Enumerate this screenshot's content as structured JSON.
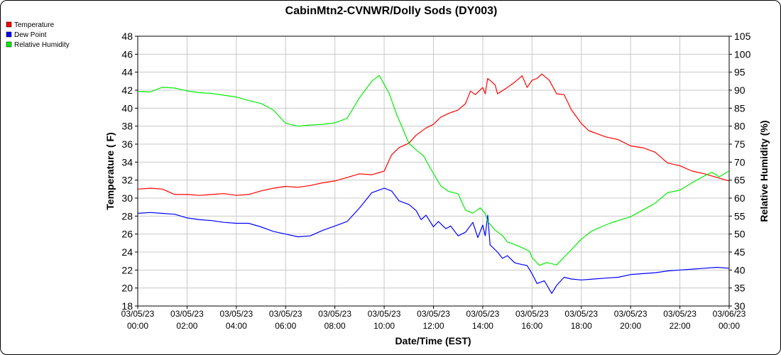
{
  "chart_data": {
    "type": "line",
    "title": "CabinMtn2-CVNWR/Dolly Sods (DY003)",
    "xlabel": "Date/Time (EST)",
    "ylabel": "Temperature ( F)",
    "y2label": "Relative Humidity (%)",
    "ylim": [
      18,
      48
    ],
    "y2lim": [
      30,
      105
    ],
    "xlim_hours": [
      0,
      24
    ],
    "grid": true,
    "legend_position": "top-left",
    "yticks": [
      "18",
      "20",
      "22",
      "24",
      "26",
      "28",
      "30",
      "32",
      "34",
      "36",
      "38",
      "40",
      "42",
      "44",
      "46",
      "48"
    ],
    "y2ticks": [
      "30",
      "35",
      "40",
      "45",
      "50",
      "55",
      "60",
      "65",
      "70",
      "75",
      "80",
      "85",
      "90",
      "95",
      "100",
      "105"
    ],
    "xticks": [
      {
        "date": "03/05/23",
        "time": "00:00"
      },
      {
        "date": "03/05/23",
        "time": "02:00"
      },
      {
        "date": "03/05/23",
        "time": "04:00"
      },
      {
        "date": "03/05/23",
        "time": "06:00"
      },
      {
        "date": "03/05/23",
        "time": "08:00"
      },
      {
        "date": "03/05/23",
        "time": "10:00"
      },
      {
        "date": "03/05/23",
        "time": "12:00"
      },
      {
        "date": "03/05/23",
        "time": "14:00"
      },
      {
        "date": "03/05/23",
        "time": "16:00"
      },
      {
        "date": "03/05/23",
        "time": "18:00"
      },
      {
        "date": "03/05/23",
        "time": "20:00"
      },
      {
        "date": "03/05/23",
        "time": "22:00"
      },
      {
        "date": "03/06/23",
        "time": "00:00"
      }
    ],
    "series": [
      {
        "name": "Temperature",
        "color": "#ff0000",
        "axis": "left",
        "points": [
          [
            0,
            31.0
          ],
          [
            0.5,
            31.1
          ],
          [
            1,
            31.0
          ],
          [
            1.5,
            30.4
          ],
          [
            2,
            30.4
          ],
          [
            2.5,
            30.3
          ],
          [
            3,
            30.4
          ],
          [
            3.5,
            30.5
          ],
          [
            4,
            30.3
          ],
          [
            4.5,
            30.4
          ],
          [
            5,
            30.8
          ],
          [
            5.5,
            31.1
          ],
          [
            6,
            31.3
          ],
          [
            6.5,
            31.2
          ],
          [
            7,
            31.4
          ],
          [
            7.5,
            31.7
          ],
          [
            8,
            31.9
          ],
          [
            8.5,
            32.3
          ],
          [
            9,
            32.7
          ],
          [
            9.5,
            32.6
          ],
          [
            10,
            33.0
          ],
          [
            10.3,
            34.8
          ],
          [
            10.6,
            35.6
          ],
          [
            11,
            36.1
          ],
          [
            11.3,
            37.0
          ],
          [
            11.7,
            37.8
          ],
          [
            12,
            38.2
          ],
          [
            12.3,
            39.0
          ],
          [
            12.6,
            39.4
          ],
          [
            13,
            39.8
          ],
          [
            13.3,
            40.5
          ],
          [
            13.5,
            41.9
          ],
          [
            13.7,
            41.5
          ],
          [
            14,
            42.3
          ],
          [
            14.1,
            41.6
          ],
          [
            14.2,
            43.3
          ],
          [
            14.5,
            42.6
          ],
          [
            14.6,
            41.6
          ],
          [
            15,
            42.3
          ],
          [
            15.3,
            42.9
          ],
          [
            15.6,
            43.6
          ],
          [
            15.8,
            42.3
          ],
          [
            16,
            43.1
          ],
          [
            16.2,
            43.3
          ],
          [
            16.4,
            43.8
          ],
          [
            16.7,
            43.1
          ],
          [
            17,
            41.6
          ],
          [
            17.3,
            41.5
          ],
          [
            17.6,
            39.8
          ],
          [
            18,
            38.3
          ],
          [
            18.3,
            37.5
          ],
          [
            18.6,
            37.2
          ],
          [
            19,
            36.8
          ],
          [
            19.5,
            36.5
          ],
          [
            20,
            35.8
          ],
          [
            20.5,
            35.6
          ],
          [
            21,
            35.1
          ],
          [
            21.5,
            33.9
          ],
          [
            22,
            33.6
          ],
          [
            22.5,
            33.0
          ],
          [
            23,
            32.7
          ],
          [
            23.5,
            32.3
          ],
          [
            24,
            31.9
          ]
        ]
      },
      {
        "name": "Dew Point",
        "color": "#0000ff",
        "axis": "left",
        "points": [
          [
            0,
            28.3
          ],
          [
            0.5,
            28.4
          ],
          [
            1,
            28.3
          ],
          [
            1.5,
            28.2
          ],
          [
            2,
            27.8
          ],
          [
            2.5,
            27.6
          ],
          [
            3,
            27.5
          ],
          [
            3.5,
            27.3
          ],
          [
            4,
            27.2
          ],
          [
            4.5,
            27.2
          ],
          [
            5,
            26.8
          ],
          [
            5.5,
            26.3
          ],
          [
            6,
            26.0
          ],
          [
            6.5,
            25.7
          ],
          [
            7,
            25.8
          ],
          [
            7.5,
            26.4
          ],
          [
            8,
            26.9
          ],
          [
            8.5,
            27.4
          ],
          [
            9,
            28.9
          ],
          [
            9.5,
            30.6
          ],
          [
            10,
            31.1
          ],
          [
            10.3,
            30.8
          ],
          [
            10.6,
            29.7
          ],
          [
            11,
            29.3
          ],
          [
            11.3,
            28.6
          ],
          [
            11.5,
            27.6
          ],
          [
            11.7,
            28.1
          ],
          [
            12,
            26.8
          ],
          [
            12.2,
            27.4
          ],
          [
            12.5,
            26.6
          ],
          [
            12.7,
            26.9
          ],
          [
            13,
            25.8
          ],
          [
            13.3,
            26.2
          ],
          [
            13.6,
            27.3
          ],
          [
            13.8,
            25.6
          ],
          [
            14,
            27.0
          ],
          [
            14.1,
            25.8
          ],
          [
            14.2,
            28.1
          ],
          [
            14.3,
            24.8
          ],
          [
            14.6,
            24.0
          ],
          [
            14.8,
            23.3
          ],
          [
            15,
            23.6
          ],
          [
            15.3,
            22.8
          ],
          [
            15.6,
            22.6
          ],
          [
            15.8,
            22.5
          ],
          [
            16,
            21.6
          ],
          [
            16.2,
            20.5
          ],
          [
            16.5,
            20.8
          ],
          [
            16.8,
            19.4
          ],
          [
            17,
            20.3
          ],
          [
            17.3,
            21.2
          ],
          [
            17.6,
            21.0
          ],
          [
            18,
            20.9
          ],
          [
            18.5,
            21.0
          ],
          [
            19,
            21.1
          ],
          [
            19.5,
            21.2
          ],
          [
            20,
            21.5
          ],
          [
            20.5,
            21.6
          ],
          [
            21,
            21.7
          ],
          [
            21.5,
            21.9
          ],
          [
            22,
            22.0
          ],
          [
            22.5,
            22.1
          ],
          [
            23,
            22.2
          ],
          [
            23.5,
            22.3
          ],
          [
            24,
            22.2
          ]
        ]
      },
      {
        "name": "Relative Humidity",
        "color": "#00ee00",
        "axis": "right",
        "points": [
          [
            0,
            89.6
          ],
          [
            0.5,
            89.5
          ],
          [
            1,
            90.8
          ],
          [
            1.5,
            90.6
          ],
          [
            2,
            89.8
          ],
          [
            2.5,
            89.3
          ],
          [
            3,
            89.1
          ],
          [
            3.5,
            88.6
          ],
          [
            4,
            88.1
          ],
          [
            4.5,
            87.1
          ],
          [
            5,
            86.3
          ],
          [
            5.5,
            84.5
          ],
          [
            6,
            80.8
          ],
          [
            6.5,
            80.0
          ],
          [
            7,
            80.3
          ],
          [
            7.5,
            80.5
          ],
          [
            8,
            80.9
          ],
          [
            8.5,
            82.2
          ],
          [
            9,
            87.9
          ],
          [
            9.5,
            92.5
          ],
          [
            9.8,
            94.1
          ],
          [
            10.2,
            89.2
          ],
          [
            10.5,
            83.4
          ],
          [
            11,
            75.3
          ],
          [
            11.3,
            73.4
          ],
          [
            11.6,
            71.7
          ],
          [
            12,
            66.8
          ],
          [
            12.3,
            63.4
          ],
          [
            12.6,
            61.9
          ],
          [
            13,
            61.2
          ],
          [
            13.3,
            56.7
          ],
          [
            13.6,
            55.8
          ],
          [
            13.9,
            57.3
          ],
          [
            14.1,
            55.7
          ],
          [
            14.2,
            53.5
          ],
          [
            14.5,
            51.1
          ],
          [
            14.8,
            49.6
          ],
          [
            15,
            47.8
          ],
          [
            15.3,
            47.1
          ],
          [
            15.6,
            46.2
          ],
          [
            15.9,
            45.2
          ],
          [
            16,
            43.5
          ],
          [
            16.3,
            41.3
          ],
          [
            16.6,
            42.1
          ],
          [
            17,
            41.4
          ],
          [
            17.3,
            43.6
          ],
          [
            17.6,
            45.7
          ],
          [
            18,
            48.6
          ],
          [
            18.4,
            50.7
          ],
          [
            18.8,
            52.0
          ],
          [
            19.2,
            53.1
          ],
          [
            19.6,
            54.0
          ],
          [
            20,
            54.8
          ],
          [
            20.5,
            56.7
          ],
          [
            21,
            58.6
          ],
          [
            21.5,
            61.5
          ],
          [
            22,
            62.2
          ],
          [
            22.5,
            64.3
          ],
          [
            23,
            66.2
          ],
          [
            23.3,
            67.2
          ],
          [
            23.6,
            65.9
          ],
          [
            24,
            67.6
          ]
        ]
      }
    ]
  }
}
